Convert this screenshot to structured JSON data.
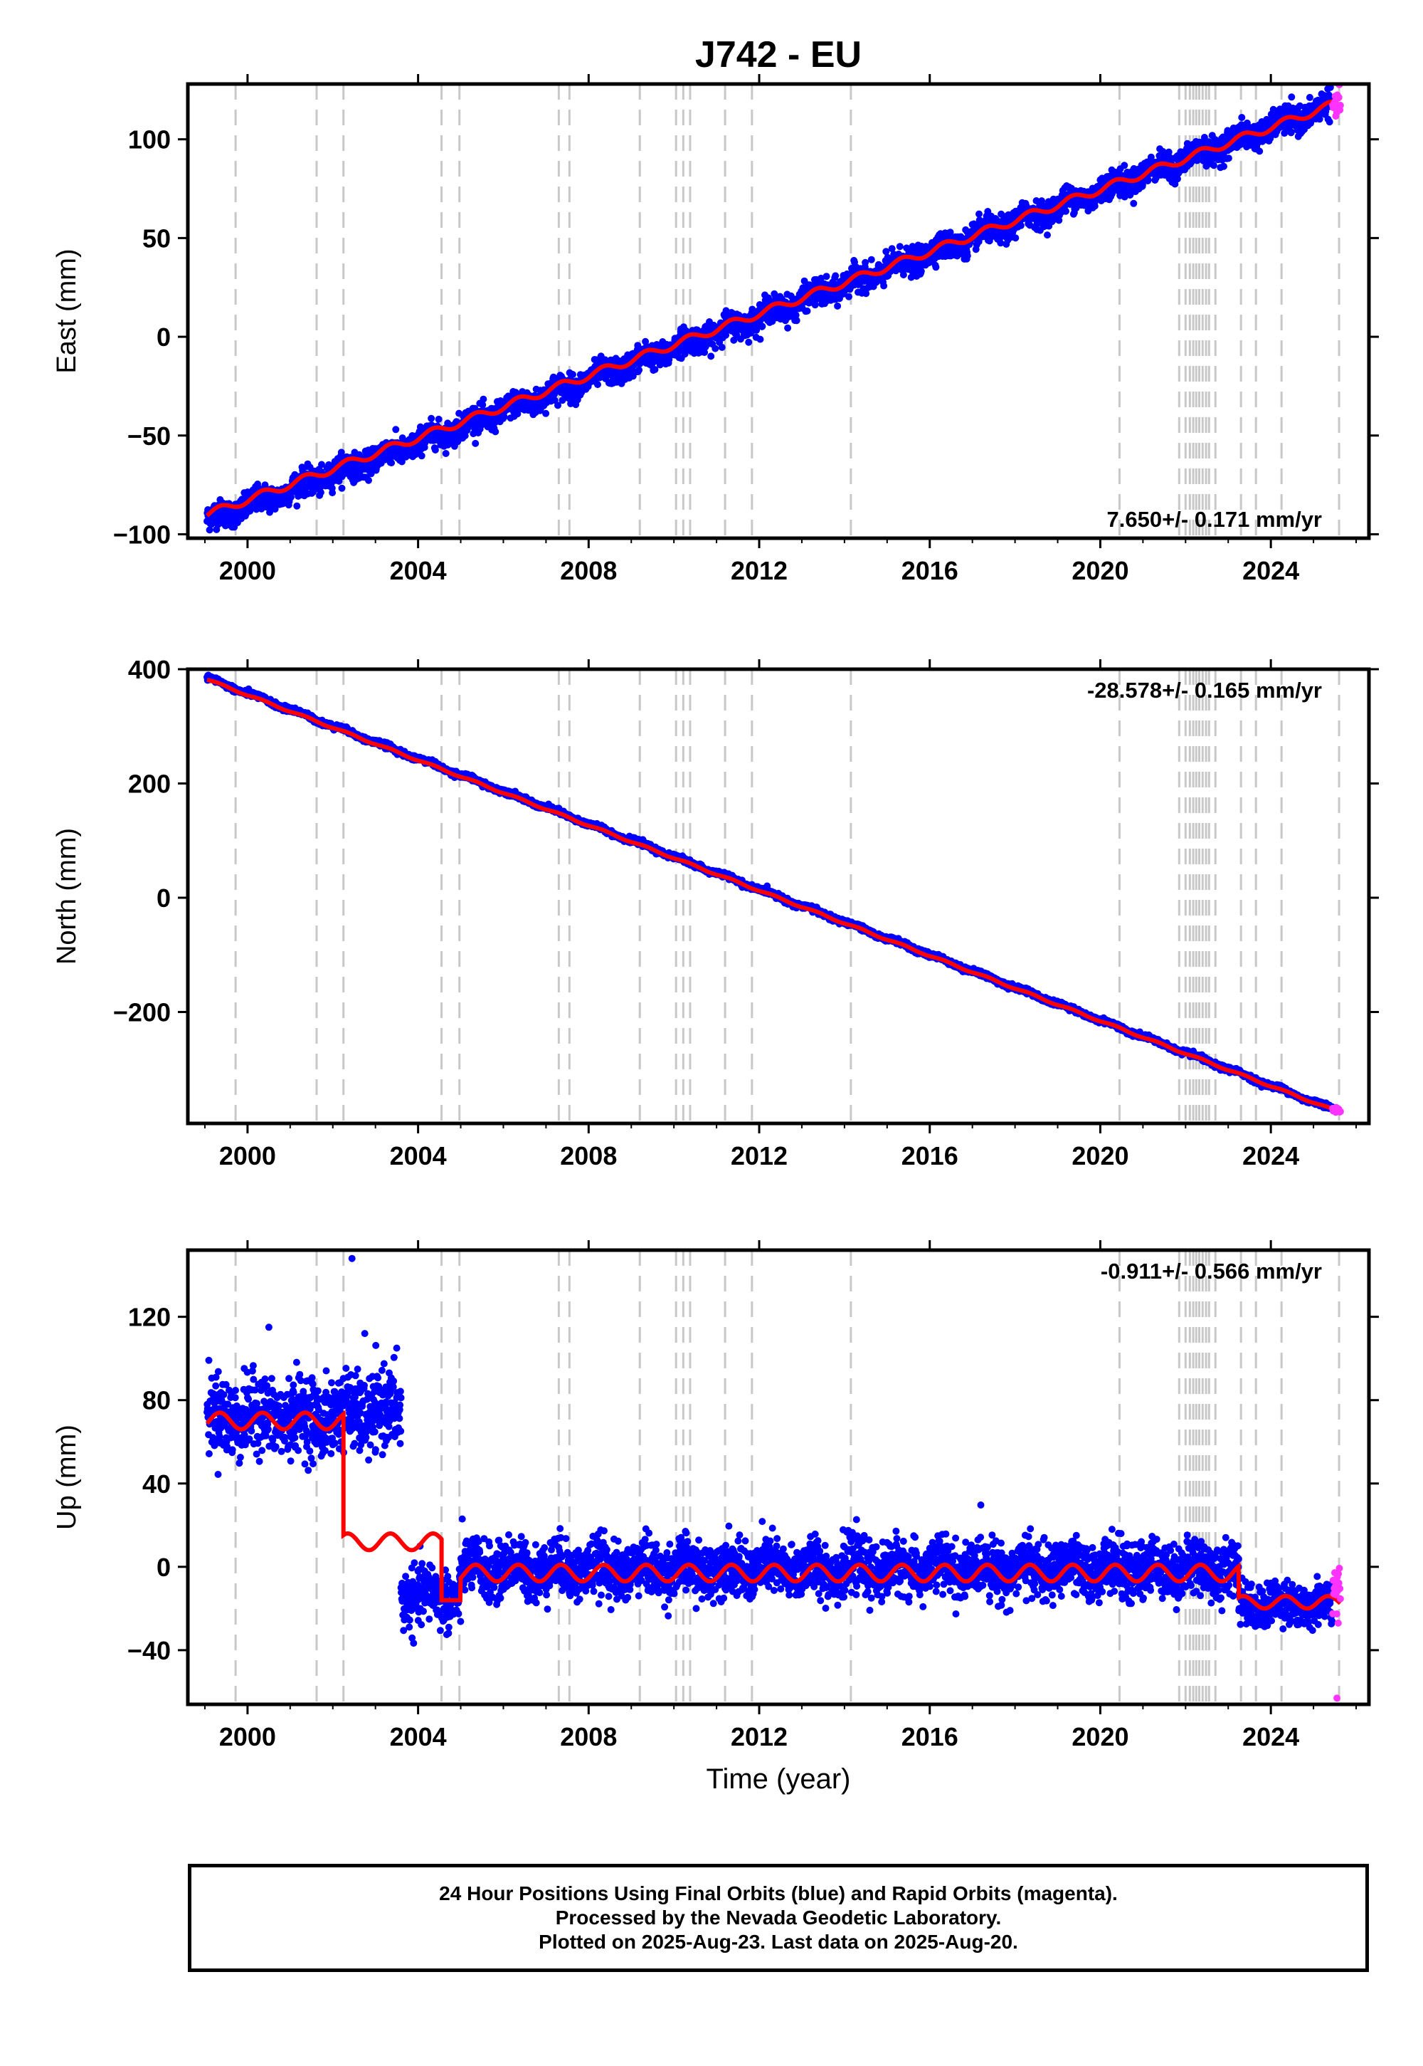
{
  "title": "J742 - EU",
  "x_axis_label": "Time (year)",
  "caption": [
    "24 Hour Positions Using Final Orbits (blue) and Rapid Orbits (magenta).",
    "Processed by the Nevada Geodetic Laboratory.",
    "Plotted on 2025-Aug-23. Last data on 2025-Aug-20."
  ],
  "colors": {
    "final_orbits": "#0000ff",
    "rapid_orbits": "#ff33ff",
    "model": "#ff0000",
    "event_lines": "#c8c8c8"
  },
  "chart_data": [
    {
      "type": "scatter",
      "component": "east",
      "ylabel": "East (mm)",
      "xlim": [
        1998.6,
        2026.3
      ],
      "ylim": [
        -102,
        128
      ],
      "xticks": [
        2000,
        2004,
        2008,
        2012,
        2016,
        2020,
        2024
      ],
      "yticks": [
        -100,
        -50,
        0,
        50,
        100
      ],
      "rate_label": "7.650+/- 0.171 mm/yr",
      "rate_position": "bottom-right",
      "grid": false,
      "series": [
        {
          "name": "Final Orbits (blue)",
          "x_range": [
            1999.05,
            2025.45
          ],
          "start": -93,
          "end": 117.5,
          "noise": 3.2
        },
        {
          "name": "Rapid Orbits (magenta)",
          "x_range": [
            2025.45,
            2025.63
          ],
          "start": 116,
          "end": 118,
          "noise": 3
        }
      ],
      "model_line": {
        "start": -90,
        "end": 117.5,
        "seasonal_amplitude": 2
      }
    },
    {
      "type": "scatter",
      "component": "north",
      "ylabel": "North (mm)",
      "xlim": [
        1998.6,
        2026.3
      ],
      "ylim": [
        -395,
        400
      ],
      "xticks": [
        2000,
        2004,
        2008,
        2012,
        2016,
        2020,
        2024
      ],
      "yticks": [
        -200,
        0,
        200,
        400
      ],
      "rate_label": "-28.578+/- 0.165 mm/yr",
      "rate_position": "top-right",
      "grid": false,
      "series": [
        {
          "name": "Final Orbits (blue)",
          "x_range": [
            1999.05,
            2025.45
          ],
          "start": 385,
          "end": -370,
          "noise": 2.2
        },
        {
          "name": "Rapid Orbits (magenta)",
          "x_range": [
            2025.45,
            2025.63
          ],
          "start": -370,
          "end": -373,
          "noise": 2
        }
      ],
      "model_line": {
        "start": 382,
        "end": -371,
        "seasonal_amplitude": 1.5
      }
    },
    {
      "type": "scatter",
      "component": "up",
      "ylabel": "Up (mm)",
      "xlim": [
        1998.6,
        2026.3
      ],
      "ylim": [
        -66,
        152
      ],
      "xticks": [
        2000,
        2004,
        2008,
        2012,
        2016,
        2020,
        2024
      ],
      "yticks": [
        -40,
        0,
        40,
        80,
        120
      ],
      "rate_label": "-0.911+/- 0.566 mm/yr",
      "rate_position": "top-right",
      "grid": false,
      "series": [
        {
          "name": "Final Orbits (blue)",
          "segments": [
            {
              "x_range": [
                1999.05,
                2002.25
              ],
              "mean": 72,
              "noise": 9
            },
            {
              "x_range": [
                2002.25,
                2003.6
              ],
              "mean": 74,
              "noise": 9
            },
            {
              "x_range": [
                2003.6,
                2005.0
              ],
              "mean": -14,
              "noise": 7
            },
            {
              "x_range": [
                2005.0,
                2023.25
              ],
              "mean": -1,
              "noise": 6.5
            },
            {
              "x_range": [
                2023.25,
                2025.45
              ],
              "mean": -18,
              "noise": 5
            }
          ],
          "outliers": [
            [
              2002.45,
              148
            ],
            [
              2000.5,
              115
            ],
            [
              2002.75,
              112
            ],
            [
              2003.5,
              105
            ]
          ]
        },
        {
          "name": "Rapid Orbits (magenta)",
          "x_range": [
            2025.45,
            2025.63
          ],
          "mean": -12,
          "noise": 6,
          "outliers": [
            [
              2025.55,
              -63
            ],
            [
              2025.58,
              -27
            ]
          ]
        }
      ],
      "model_line": {
        "segments": [
          {
            "x_range": [
              1999.05,
              2002.25
            ],
            "level": 70,
            "seasonal_amplitude": 4
          },
          {
            "x_range": [
              2002.25,
              2004.55
            ],
            "level": 12,
            "seasonal_amplitude": 4
          },
          {
            "x_range": [
              2004.55,
              2005.0
            ],
            "level": -16,
            "seasonal_amplitude": 0
          },
          {
            "x_range": [
              2005.0,
              2023.25
            ],
            "level": -3,
            "seasonal_amplitude": 4
          },
          {
            "x_range": [
              2023.25,
              2025.63
            ],
            "level": -17,
            "seasonal_amplitude": 3
          }
        ]
      }
    }
  ],
  "event_lines": [
    1999.72,
    2001.62,
    2002.25,
    2004.55,
    2004.97,
    2007.3,
    2007.55,
    2009.2,
    2010.05,
    2010.22,
    2010.38,
    2011.2,
    2011.83,
    2014.15,
    2020.45,
    2021.85,
    2022.0,
    2022.1,
    2022.18,
    2022.25,
    2022.32,
    2022.4,
    2022.48,
    2022.55,
    2022.7,
    2023.3,
    2023.65,
    2024.25,
    2025.6
  ]
}
